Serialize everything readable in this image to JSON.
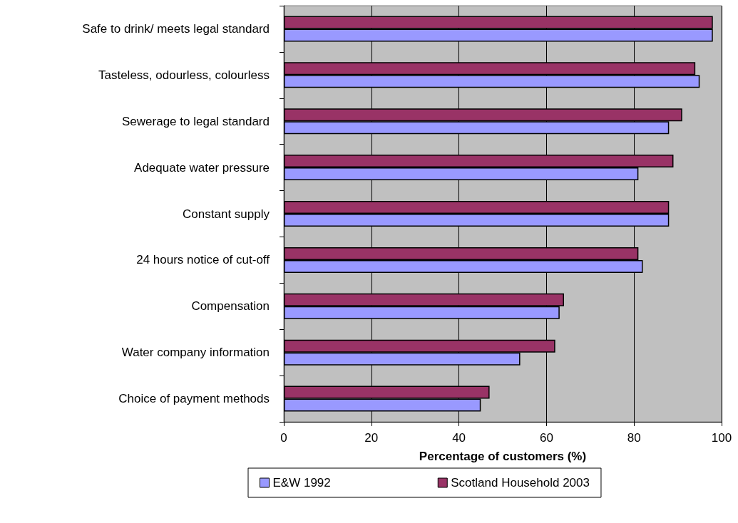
{
  "chart_data": {
    "type": "bar",
    "orientation": "horizontal",
    "xlabel": "Percentage of customers (%)",
    "categories": [
      "Safe to drink/ meets legal standard",
      "Tasteless, odourless, colourless",
      "Sewerage to legal standard",
      "Adequate water pressure",
      "Constant supply",
      "24 hours notice of cut-off",
      "Compensation",
      "Water company information",
      "Choice of payment methods"
    ],
    "series": [
      {
        "name": "E&W 1992",
        "color": "#9999ff",
        "values": [
          98,
          95,
          88,
          81,
          88,
          82,
          63,
          54,
          45
        ]
      },
      {
        "name": "Scotland Household 2003",
        "color": "#993366",
        "values": [
          98,
          94,
          91,
          89,
          88,
          81,
          64,
          62,
          47
        ]
      }
    ],
    "xlim": [
      0,
      100
    ],
    "xticks": [
      0,
      20,
      40,
      60,
      80,
      100
    ],
    "grid": "x",
    "legend": "bottom"
  }
}
